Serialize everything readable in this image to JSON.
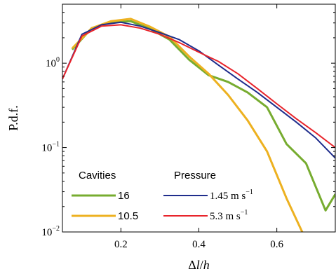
{
  "chart_data": {
    "type": "line",
    "title": "",
    "xlabel": "Δl/h",
    "ylabel": "P.d.f.",
    "xlim": [
      0.05,
      0.75
    ],
    "ylim": [
      0.01,
      5.0
    ],
    "yscale": "log",
    "grid": false,
    "x_ticks": [
      {
        "value": 0.2,
        "label": "0.2"
      },
      {
        "value": 0.4,
        "label": "0.4"
      },
      {
        "value": 0.6,
        "label": "0.6"
      }
    ],
    "y_ticks": [
      {
        "value": 1.0,
        "base": "10",
        "exp": "0"
      },
      {
        "value": 0.1,
        "base": "10",
        "exp": "−1"
      },
      {
        "value": 0.01,
        "base": "10",
        "exp": "−2"
      }
    ],
    "legend": {
      "placement": "bottom-left",
      "group_headers": [
        "Cavities",
        "Pressure"
      ]
    },
    "series": [
      {
        "name": "16",
        "group": "Cavities",
        "color": "#77ac30",
        "x": [
          0.075,
          0.125,
          0.175,
          0.225,
          0.275,
          0.325,
          0.375,
          0.425,
          0.475,
          0.525,
          0.575,
          0.625,
          0.675,
          0.725,
          0.75
        ],
        "y": [
          1.45,
          2.6,
          3.05,
          3.15,
          2.55,
          1.9,
          1.1,
          0.72,
          0.6,
          0.45,
          0.3,
          0.11,
          0.065,
          0.018,
          0.028
        ]
      },
      {
        "name": "10.5",
        "group": "Cavities",
        "color": "#edb120",
        "x": [
          0.075,
          0.125,
          0.175,
          0.225,
          0.275,
          0.325,
          0.375,
          0.425,
          0.475,
          0.525,
          0.575,
          0.625,
          0.675
        ],
        "y": [
          1.5,
          2.6,
          3.15,
          3.35,
          2.7,
          2.05,
          1.2,
          0.75,
          0.42,
          0.21,
          0.09,
          0.025,
          0.008
        ]
      },
      {
        "name_value": "1.45",
        "name_unit": "m s",
        "name_exp": "−1",
        "group": "Pressure",
        "color": "#1f2d8c",
        "x": [
          0.05,
          0.1,
          0.15,
          0.2,
          0.25,
          0.3,
          0.35,
          0.4,
          0.45,
          0.5,
          0.55,
          0.6,
          0.65,
          0.7,
          0.75
        ],
        "y": [
          0.65,
          2.2,
          2.85,
          3.05,
          2.75,
          2.3,
          1.9,
          1.4,
          0.95,
          0.65,
          0.45,
          0.3,
          0.2,
          0.13,
          0.075
        ]
      },
      {
        "name_value": "5.3",
        "name_unit": "m s",
        "name_exp": "−1",
        "group": "Pressure",
        "color": "#e8242b",
        "x": [
          0.05,
          0.1,
          0.15,
          0.2,
          0.25,
          0.3,
          0.35,
          0.4,
          0.45,
          0.5,
          0.55,
          0.6,
          0.65,
          0.7,
          0.75
        ],
        "y": [
          0.65,
          2.1,
          2.75,
          2.85,
          2.6,
          2.2,
          1.75,
          1.35,
          1.05,
          0.75,
          0.5,
          0.33,
          0.22,
          0.15,
          0.1
        ]
      }
    ]
  }
}
